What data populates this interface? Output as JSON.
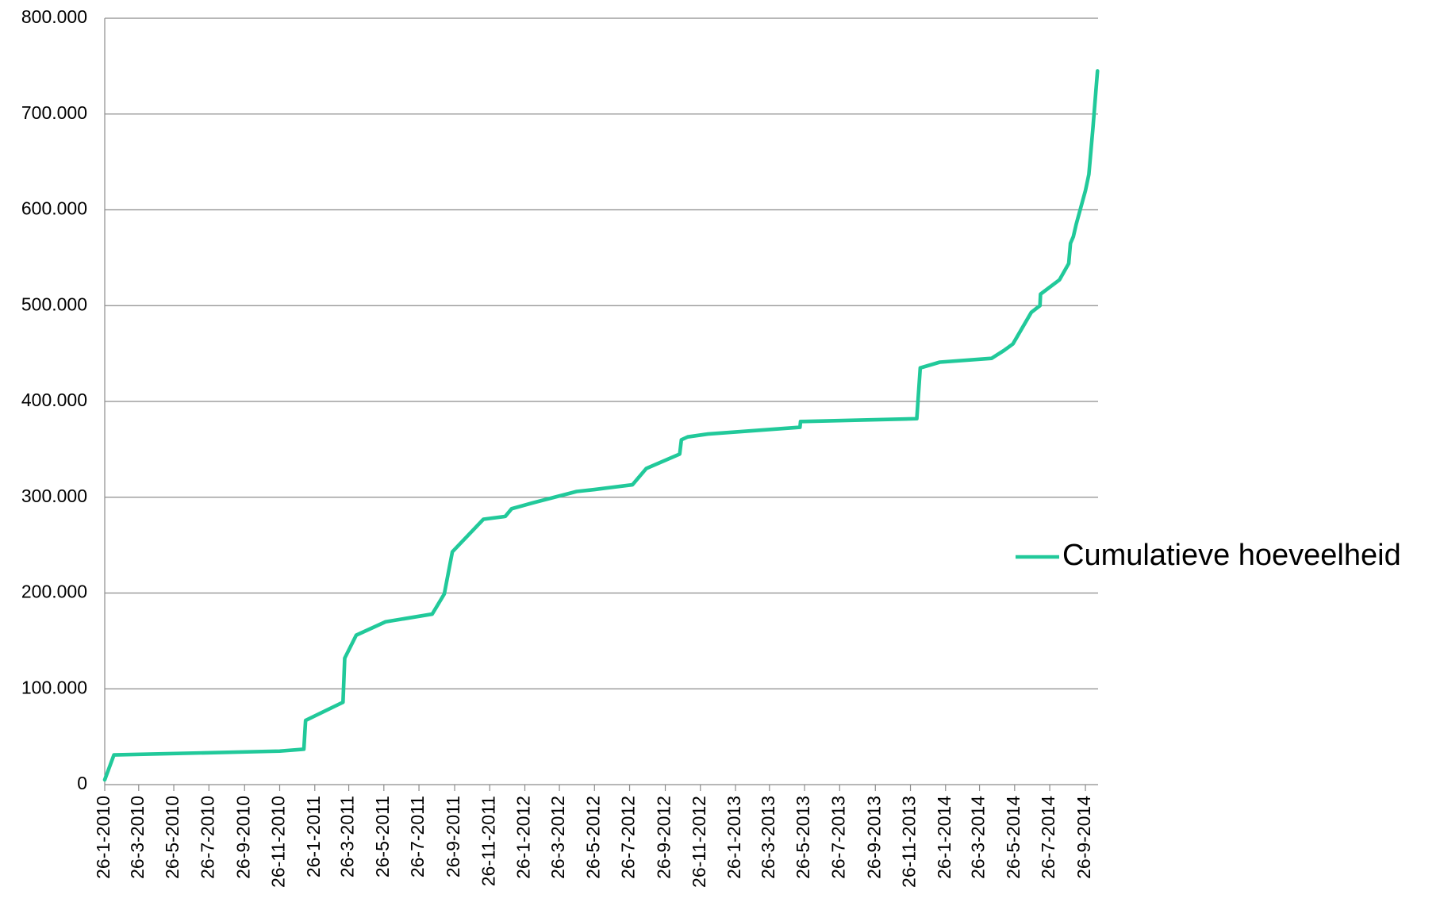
{
  "chart_data": {
    "type": "line",
    "xlim": [
      "2010-01-26",
      "2014-10-18"
    ],
    "xticks": [
      {
        "value": "2010-01-26",
        "label": "26-1-2010"
      },
      {
        "value": "2010-03-26",
        "label": "26-3-2010"
      },
      {
        "value": "2010-05-26",
        "label": "26-5-2010"
      },
      {
        "value": "2010-07-26",
        "label": "26-7-2010"
      },
      {
        "value": "2010-09-26",
        "label": "26-9-2010"
      },
      {
        "value": "2010-11-26",
        "label": "26-11-2010"
      },
      {
        "value": "2011-01-26",
        "label": "26-1-2011"
      },
      {
        "value": "2011-03-26",
        "label": "26-3-2011"
      },
      {
        "value": "2011-05-26",
        "label": "26-5-2011"
      },
      {
        "value": "2011-07-26",
        "label": "26-7-2011"
      },
      {
        "value": "2011-09-26",
        "label": "26-9-2011"
      },
      {
        "value": "2011-11-26",
        "label": "26-11-2011"
      },
      {
        "value": "2012-01-26",
        "label": "26-1-2012"
      },
      {
        "value": "2012-03-26",
        "label": "26-3-2012"
      },
      {
        "value": "2012-05-26",
        "label": "26-5-2012"
      },
      {
        "value": "2012-07-26",
        "label": "26-7-2012"
      },
      {
        "value": "2012-09-26",
        "label": "26-9-2012"
      },
      {
        "value": "2012-11-26",
        "label": "26-11-2012"
      },
      {
        "value": "2013-01-26",
        "label": "26-1-2013"
      },
      {
        "value": "2013-03-26",
        "label": "26-3-2013"
      },
      {
        "value": "2013-05-26",
        "label": "26-5-2013"
      },
      {
        "value": "2013-07-26",
        "label": "26-7-2013"
      },
      {
        "value": "2013-09-26",
        "label": "26-9-2013"
      },
      {
        "value": "2013-11-26",
        "label": "26-11-2013"
      },
      {
        "value": "2014-01-26",
        "label": "26-1-2014"
      },
      {
        "value": "2014-03-26",
        "label": "26-3-2014"
      },
      {
        "value": "2014-05-26",
        "label": "26-5-2014"
      },
      {
        "value": "2014-07-26",
        "label": "26-7-2014"
      },
      {
        "value": "2014-09-26",
        "label": "26-9-2014"
      }
    ],
    "ylim": [
      0,
      800000
    ],
    "yticks": [
      0,
      {
        "value": 100000,
        "label": "100.000"
      },
      {
        "value": 200000,
        "label": "200.000"
      },
      {
        "value": 300000,
        "label": "300.000"
      },
      {
        "value": 400000,
        "label": "400.000"
      },
      {
        "value": 500000,
        "label": "500.000"
      },
      {
        "value": 600000,
        "label": "600.000"
      },
      {
        "value": 700000,
        "label": "700.000"
      },
      {
        "value": 800000,
        "label": "800.000"
      }
    ],
    "grid": true,
    "legend": "right",
    "x": [
      "2010-01-26",
      "2010-02-11",
      "2010-11-26",
      "2011-01-07",
      "2011-01-10",
      "2011-03-16",
      "2011-03-19",
      "2011-04-08",
      "2011-05-29",
      "2011-08-18",
      "2011-09-08",
      "2011-09-22",
      "2011-11-15",
      "2011-12-23",
      "2012-01-03",
      "2012-02-08",
      "2012-04-25",
      "2012-05-26",
      "2012-07-31",
      "2012-08-24",
      "2012-10-21",
      "2012-10-24",
      "2012-11-04",
      "2012-12-09",
      "2013-05-18",
      "2013-05-19",
      "2013-12-07",
      "2013-12-13",
      "2014-01-16",
      "2014-04-16",
      "2014-05-07",
      "2014-05-23",
      "2014-06-24",
      "2014-07-09",
      "2014-07-10",
      "2014-08-12",
      "2014-08-28",
      "2014-08-31",
      "2014-09-05",
      "2014-09-10",
      "2014-09-26",
      "2014-10-02",
      "2014-10-09",
      "2014-10-17"
    ],
    "series": [
      {
        "name": "Cumulatieve hoeveelheid",
        "color": "#21c99a",
        "values": [
          5000,
          31000,
          35000,
          37000,
          67000,
          86000,
          132000,
          156000,
          170000,
          178000,
          199000,
          243000,
          277000,
          280000,
          288000,
          294000,
          306000,
          308000,
          313000,
          330000,
          345000,
          360000,
          363000,
          366000,
          373000,
          379000,
          382000,
          435000,
          441000,
          445000,
          453000,
          460000,
          493000,
          500000,
          512000,
          527000,
          544000,
          565000,
          572000,
          585000,
          620000,
          637000,
          685000,
          745000
        ]
      }
    ]
  }
}
